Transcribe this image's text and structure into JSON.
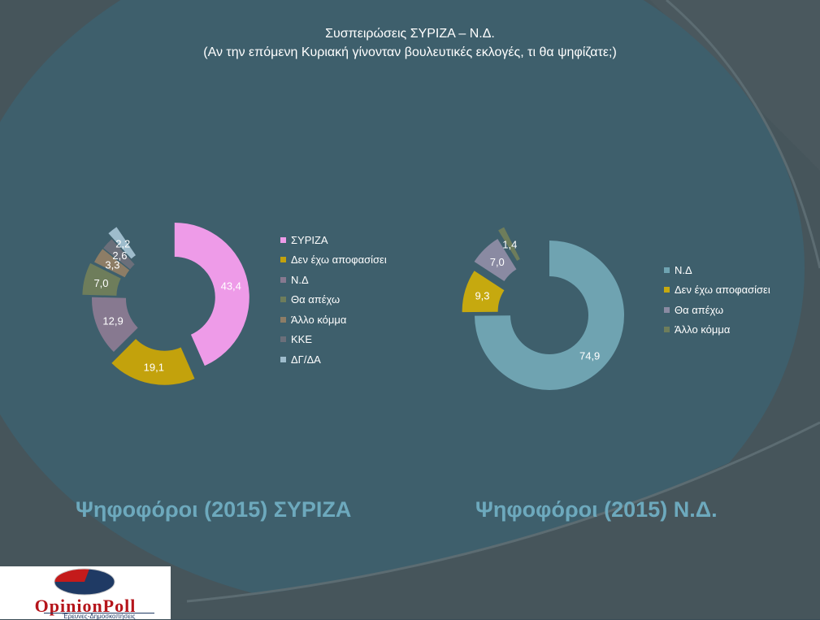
{
  "title": {
    "line1": "Συσπειρώσεις ΣΥΡΙΖΑ – Ν.Δ.",
    "line2": "(Αν την επόμενη Κυριακή γίνονταν βουλευτικές εκλογές, τι θα ψηφίζατε;)"
  },
  "chart_data": [
    {
      "type": "pie",
      "donut": true,
      "title": "Ψηφοφόροι (2015) ΣΥΡΙΖΑ",
      "legend_position": "right",
      "categories": [
        "ΣΥΡΙΖΑ",
        "Δεν έχω αποφασίσει",
        "Ν.Δ",
        "Θα απέχω",
        "Άλλο κόμμα",
        "ΚΚΕ",
        "ΔΓ/ΔΑ"
      ],
      "values": [
        43.4,
        19.1,
        12.9,
        7.0,
        3.3,
        2.6,
        2.2
      ],
      "labels": [
        "43,4",
        "19,1",
        "12,9",
        "7,0",
        "3,3",
        "2,6",
        "2,2"
      ],
      "colors": [
        "#ee9be8",
        "#c3a20c",
        "#877990",
        "#6e7d5b",
        "#8d7d66",
        "#6b6f7a",
        "#9ebccc"
      ]
    },
    {
      "type": "pie",
      "donut": true,
      "title": "Ψηφοφόροι (2015) Ν.Δ.",
      "legend_position": "right",
      "categories": [
        "Ν.Δ",
        "Δεν έχω αποφασίσει",
        "Θα απέχω",
        "Άλλο κόμμα"
      ],
      "values": [
        74.9,
        9.3,
        7.0,
        1.4
      ],
      "labels": [
        "74,9",
        "9,3",
        "7,0",
        "1,4"
      ],
      "colors": [
        "#6fa3b1",
        "#c6a90f",
        "#8a8aa2",
        "#6e7d5b"
      ]
    }
  ],
  "logo": {
    "name": "OpinionPoll",
    "tagline": "Έρευνες-Δημοσκοπήσεις"
  }
}
